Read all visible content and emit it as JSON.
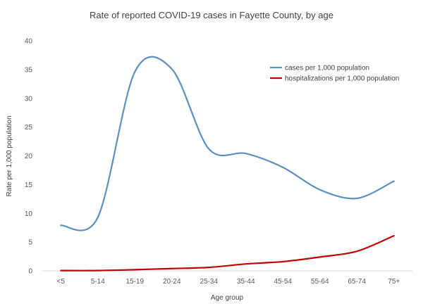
{
  "chart_data": {
    "type": "line",
    "title": "Rate of reported COVID-19 cases in Fayette County, by age",
    "xlabel": "Age group",
    "ylabel": "Rate per 1,000 population",
    "ylim": [
      0,
      40
    ],
    "yticks": [
      0,
      5,
      10,
      15,
      20,
      25,
      30,
      35,
      40
    ],
    "grid": false,
    "legend_position": "top-right",
    "categories": [
      "<5",
      "5-14",
      "15-19",
      "20-24",
      "25-34",
      "35-44",
      "45-54",
      "55-64",
      "65-74",
      "75+"
    ],
    "series": [
      {
        "name": "cases per 1,000 population",
        "color": "#5b8fbf",
        "values": [
          7.9,
          9.3,
          34.6,
          35.1,
          21.2,
          20.4,
          18.0,
          14.1,
          12.6,
          15.6
        ]
      },
      {
        "name": "hospitalizations per 1,000 population",
        "color": "#c00000",
        "values": [
          0.05,
          0.05,
          0.2,
          0.4,
          0.6,
          1.2,
          1.6,
          2.4,
          3.4,
          6.1
        ]
      }
    ]
  }
}
